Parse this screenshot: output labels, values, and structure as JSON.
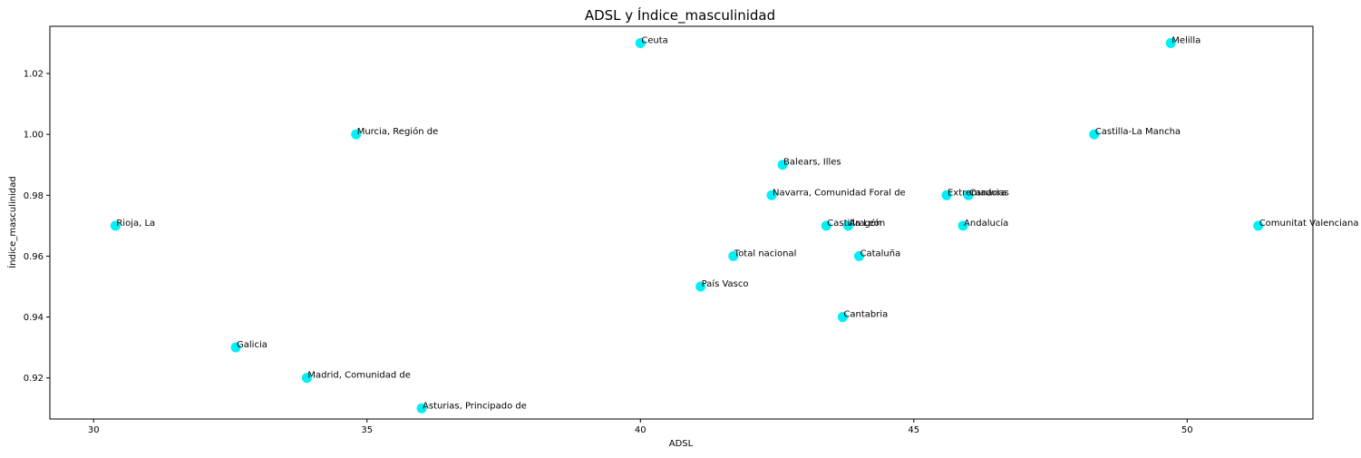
{
  "chart_data": {
    "type": "scatter",
    "title": "ADSL y Índice_masculinidad",
    "xlabel": "ADSL",
    "ylabel": "Índice_masculinidad",
    "xlim": [
      29.2,
      52.3
    ],
    "ylim": [
      0.9065,
      1.0355
    ],
    "xticks": [
      30,
      35,
      40,
      45,
      50
    ],
    "yticks": [
      0.92,
      0.94,
      0.96,
      0.98,
      1.0,
      1.02
    ],
    "ytick_labels": [
      "0.92",
      "0.94",
      "0.96",
      "0.98",
      "1.00",
      "1.02"
    ],
    "marker_color": "#00f0f8",
    "grid": false,
    "points": [
      {
        "label": "Rioja, La",
        "x": 30.4,
        "y": 0.97
      },
      {
        "label": "Galicia",
        "x": 32.6,
        "y": 0.93
      },
      {
        "label": "Madrid, Comunidad de",
        "x": 33.9,
        "y": 0.92
      },
      {
        "label": "Murcia, Región de",
        "x": 34.8,
        "y": 1.0
      },
      {
        "label": "Asturias, Principado de",
        "x": 36.0,
        "y": 0.91
      },
      {
        "label": "Ceuta",
        "x": 40.0,
        "y": 1.03
      },
      {
        "label": "País Vasco",
        "x": 41.1,
        "y": 0.95
      },
      {
        "label": "Total nacional",
        "x": 41.7,
        "y": 0.96
      },
      {
        "label": "Navarra, Comunidad Foral de",
        "x": 42.4,
        "y": 0.98
      },
      {
        "label": "Balears, Illes",
        "x": 42.6,
        "y": 0.99
      },
      {
        "label": "Castilla León",
        "x": 43.4,
        "y": 0.97
      },
      {
        "label": "Cantabria",
        "x": 43.7,
        "y": 0.94
      },
      {
        "label": "Aragón",
        "x": 43.8,
        "y": 0.97
      },
      {
        "label": "Cataluña",
        "x": 44.0,
        "y": 0.96
      },
      {
        "label": "Extremadura",
        "x": 45.6,
        "y": 0.98
      },
      {
        "label": "Andalucía",
        "x": 45.9,
        "y": 0.97
      },
      {
        "label": "Canarias",
        "x": 46.0,
        "y": 0.98
      },
      {
        "label": "Castilla-La Mancha",
        "x": 48.3,
        "y": 1.0
      },
      {
        "label": "Melilla",
        "x": 49.7,
        "y": 1.03
      },
      {
        "label": "Comunitat Valenciana",
        "x": 51.3,
        "y": 0.97
      }
    ]
  }
}
